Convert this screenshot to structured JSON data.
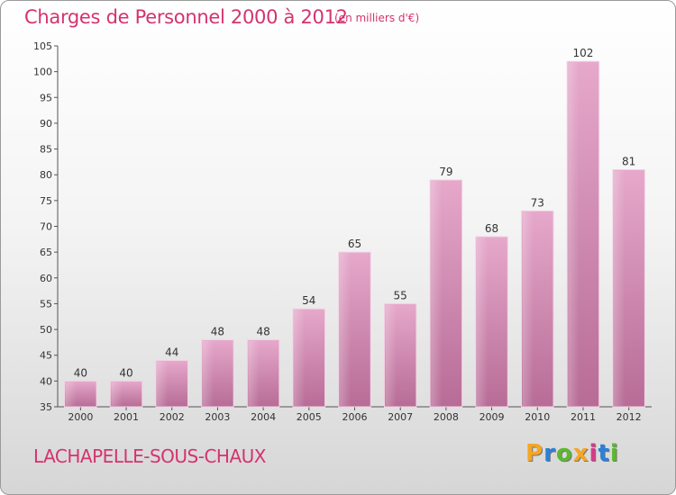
{
  "chart_data": {
    "type": "bar",
    "title": "Charges de Personnel 2000 à 2012",
    "subtitle": "(en milliers d'€)",
    "categories": [
      "2000",
      "2001",
      "2002",
      "2003",
      "2004",
      "2005",
      "2006",
      "2007",
      "2008",
      "2009",
      "2010",
      "2011",
      "2012"
    ],
    "values": [
      40,
      40,
      44,
      48,
      48,
      54,
      65,
      55,
      79,
      68,
      73,
      102,
      81
    ],
    "ylim": [
      35,
      105
    ],
    "yticks": [
      35,
      40,
      45,
      50,
      55,
      60,
      65,
      70,
      75,
      80,
      85,
      90,
      95,
      100,
      105
    ],
    "xlabel": "",
    "ylabel": "",
    "grid": false,
    "bar_color": "#cc6699"
  },
  "place_name": "LACHAPELLE-SOUS-CHAUX",
  "logo": {
    "letters": [
      "P",
      "r",
      "o",
      "x",
      "i",
      "t",
      "i"
    ],
    "colors": [
      "#f5a623",
      "#2d7fd6",
      "#5cb82e",
      "#f5a623",
      "#d63c8a",
      "#2d7fd6",
      "#5cb82e"
    ]
  }
}
